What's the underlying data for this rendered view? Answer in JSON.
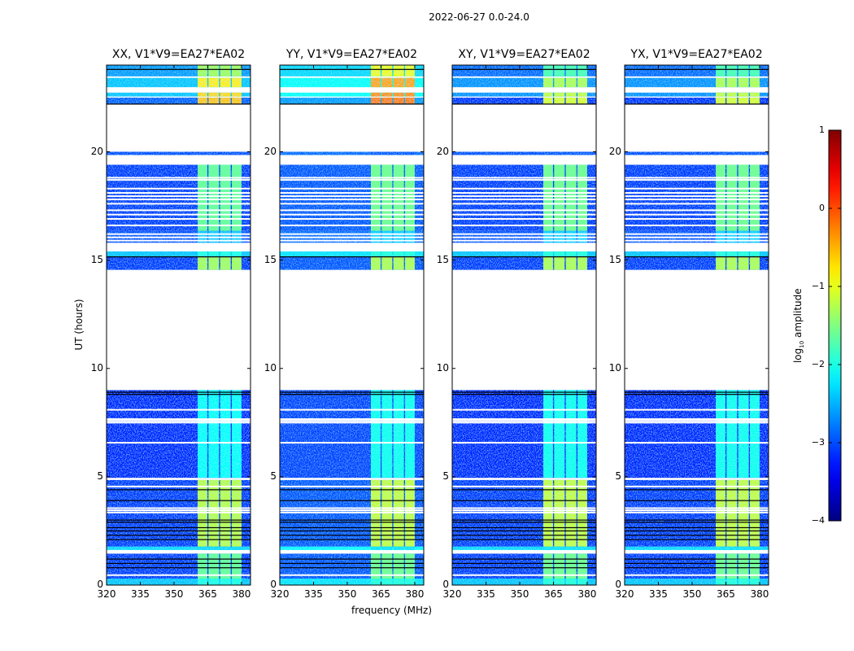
{
  "chart_data": {
    "type": "heatmap",
    "title": "2022-06-27 0.0-24.0",
    "xlabel": "frequency (MHz)",
    "ylabel": "UT (hours)",
    "xlim": [
      320,
      384
    ],
    "ylim": [
      0,
      24
    ],
    "xticks": [
      320,
      335,
      350,
      365,
      380
    ],
    "yticks": [
      0,
      5,
      10,
      15,
      20
    ],
    "panels": [
      {
        "title": "XX, V1*V9=EA27*EA02",
        "base_shift": 0,
        "bright_shift": 0,
        "top_shift": 0
      },
      {
        "title": "YY, V1*V9=EA27*EA02",
        "base_shift": 0.15,
        "bright_shift": 0.05,
        "top_shift": 0.3
      },
      {
        "title": "XY, V1*V9=EA27*EA02",
        "base_shift": 0,
        "bright_shift": 0.05,
        "top_shift": -0.5
      },
      {
        "title": "YX, V1*V9=EA27*EA02",
        "base_shift": 0,
        "bright_shift": 0.05,
        "top_shift": -0.5
      }
    ],
    "bright_channels_mhz": [
      [
        360.5,
        364.8
      ],
      [
        365.3,
        370.0
      ],
      [
        370.5,
        375.2
      ],
      [
        375.7,
        380.0
      ]
    ],
    "segments_ut": [
      {
        "start": 0.0,
        "end": 0.3,
        "base": -2.4,
        "bright": -2.0
      },
      {
        "start": 0.3,
        "end": 1.45,
        "base": -3.1,
        "bright": -1.6
      },
      {
        "start": 1.62,
        "end": 1.78,
        "base": -2.3,
        "bright": -2.3
      },
      {
        "start": 1.78,
        "end": 4.85,
        "base": -3.1,
        "bright": -1.2
      },
      {
        "start": 4.95,
        "end": 9.0,
        "base": -3.2,
        "bright": -2.1
      },
      {
        "start": 14.55,
        "end": 15.15,
        "base": -3.1,
        "bright": -1.3
      },
      {
        "start": 15.15,
        "end": 15.4,
        "base": -2.4,
        "bright": -2.0
      },
      {
        "start": 15.8,
        "end": 16.35,
        "base": -3.0,
        "bright": -2.4
      },
      {
        "start": 16.35,
        "end": 19.4,
        "base": -3.1,
        "bright": -1.6
      },
      {
        "start": 19.85,
        "end": 20.0,
        "base": -3.0,
        "bright": -3.0
      },
      {
        "start": 22.2,
        "end": 22.5,
        "base": -2.9,
        "bright": -0.6,
        "top": true
      },
      {
        "start": 22.55,
        "end": 22.73,
        "base": -2.4,
        "bright": -0.7,
        "top": true
      },
      {
        "start": 22.98,
        "end": 23.41,
        "base": -2.4,
        "bright": -0.8,
        "top": true
      },
      {
        "start": 23.48,
        "end": 24.0,
        "base": -2.6,
        "bright": -1.3,
        "top": true
      }
    ],
    "flagged_rows_ut": [
      0.46,
      3.35,
      3.45,
      3.55,
      4.55,
      6.57,
      7.5,
      7.58,
      7.66,
      8.09,
      15.9,
      16.05,
      16.2,
      16.6,
      16.9,
      17.1,
      17.3,
      17.6,
      17.8,
      17.95,
      18.1,
      18.3,
      18.7,
      18.8
    ],
    "dark_rows_ut": [
      0.8,
      1.0,
      1.2,
      2.1,
      2.3,
      2.5,
      2.65,
      2.9,
      3.0,
      3.9,
      4.4,
      8.8,
      8.9,
      15.15,
      22.2,
      23.8
    ],
    "colorbar": {
      "label_main": "log",
      "label_sub": "10",
      "label_rest": " amplitude",
      "range": [
        -4,
        1
      ],
      "ticks": [
        "1",
        "0",
        "−1",
        "−2",
        "−3",
        "−4"
      ],
      "colormap": "jet"
    }
  }
}
